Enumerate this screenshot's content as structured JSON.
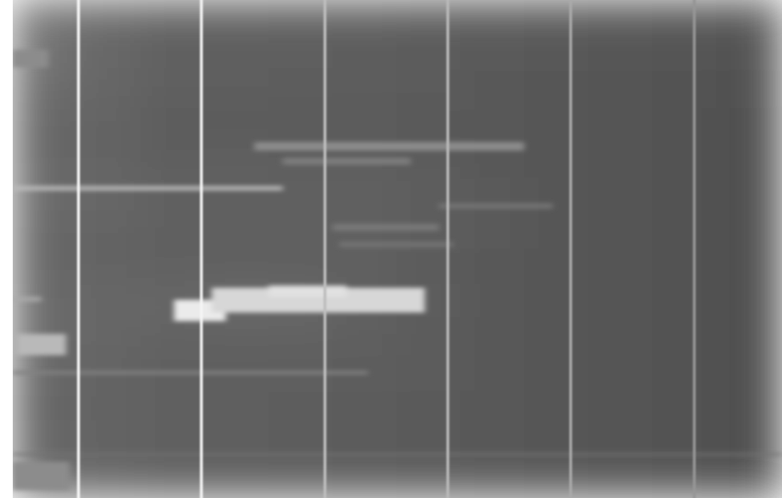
{
  "chart_data": {
    "type": "heatmap",
    "tick_labels": false,
    "xlim": [
      0,
      1083
    ],
    "ylim": [
      0,
      701
    ],
    "zlim": [
      0,
      255
    ],
    "cells": {
      "x_bins": [
        0,
        90,
        180,
        270,
        360,
        450,
        540,
        630,
        720,
        810,
        900,
        990,
        1083
      ],
      "y_bins": [
        0,
        50,
        100,
        150,
        200,
        250,
        300,
        350,
        400,
        450,
        500,
        550,
        600,
        650,
        701
      ],
      "values": [
        [
          112,
          104,
          98,
          96,
          95,
          94,
          92,
          90,
          88,
          86,
          84,
          82
        ],
        [
          118,
          104,
          97,
          95,
          94,
          93,
          92,
          90,
          88,
          86,
          84,
          82
        ],
        [
          108,
          102,
          96,
          94,
          93,
          93,
          91,
          89,
          87,
          85,
          83,
          81
        ],
        [
          104,
          100,
          92,
          90,
          90,
          90,
          89,
          88,
          86,
          84,
          82,
          80
        ],
        [
          104,
          100,
          95,
          96,
          95,
          94,
          92,
          89,
          86,
          84,
          82,
          80
        ],
        [
          108,
          104,
          98,
          97,
          96,
          96,
          94,
          90,
          87,
          84,
          82,
          80
        ],
        [
          104,
          100,
          96,
          97,
          97,
          96,
          93,
          90,
          87,
          84,
          82,
          80
        ],
        [
          104,
          100,
          96,
          95,
          95,
          94,
          92,
          89,
          86,
          84,
          82,
          80
        ],
        [
          106,
          104,
          104,
          108,
          106,
          98,
          93,
          89,
          86,
          84,
          82,
          80
        ],
        [
          106,
          102,
          98,
          97,
          96,
          94,
          92,
          89,
          86,
          84,
          82,
          80
        ],
        [
          104,
          100,
          96,
          95,
          94,
          93,
          91,
          88,
          86,
          84,
          82,
          80
        ],
        [
          102,
          100,
          96,
          94,
          93,
          92,
          90,
          88,
          86,
          84,
          82,
          80
        ],
        [
          104,
          100,
          96,
          94,
          93,
          92,
          90,
          88,
          86,
          84,
          82,
          80
        ],
        [
          108,
          102,
          97,
          95,
          94,
          93,
          91,
          88,
          86,
          84,
          82,
          80
        ]
      ]
    },
    "lines": {
      "x": [
        92,
        265,
        439,
        612,
        785,
        959
      ],
      "values": [
        250,
        245,
        190,
        185,
        170,
        150
      ]
    },
    "streaks": [
      {
        "x1": 227,
        "x2": 300,
        "y1": 422,
        "y2": 452,
        "value": 235
      },
      {
        "x1": 280,
        "x2": 580,
        "y1": 405,
        "y2": 440,
        "value": 215
      },
      {
        "x1": 360,
        "x2": 470,
        "y1": 402,
        "y2": 418,
        "value": 225
      },
      {
        "x1": 0,
        "x2": 380,
        "y1": 262,
        "y2": 268,
        "value": 190
      },
      {
        "x1": 5,
        "x2": 75,
        "y1": 470,
        "y2": 500,
        "value": 185
      },
      {
        "x1": 0,
        "x2": 50,
        "y1": 70,
        "y2": 95,
        "value": 140
      },
      {
        "x1": 340,
        "x2": 720,
        "y1": 200,
        "y2": 212,
        "value": 140
      },
      {
        "x1": 380,
        "x2": 560,
        "y1": 222,
        "y2": 232,
        "value": 125
      },
      {
        "x1": 450,
        "x2": 600,
        "y1": 315,
        "y2": 325,
        "value": 120
      },
      {
        "x1": 460,
        "x2": 620,
        "y1": 340,
        "y2": 348,
        "value": 115
      },
      {
        "x1": 600,
        "x2": 760,
        "y1": 286,
        "y2": 294,
        "value": 115
      },
      {
        "x1": 0,
        "x2": 40,
        "y1": 418,
        "y2": 424,
        "value": 170
      },
      {
        "x1": 0,
        "x2": 80,
        "y1": 650,
        "y2": 690,
        "value": 140
      },
      {
        "x1": 0,
        "x2": 500,
        "y1": 522,
        "y2": 527,
        "value": 130
      },
      {
        "x1": 0,
        "x2": 1083,
        "y1": 638,
        "y2": 641,
        "value": 115
      }
    ]
  }
}
